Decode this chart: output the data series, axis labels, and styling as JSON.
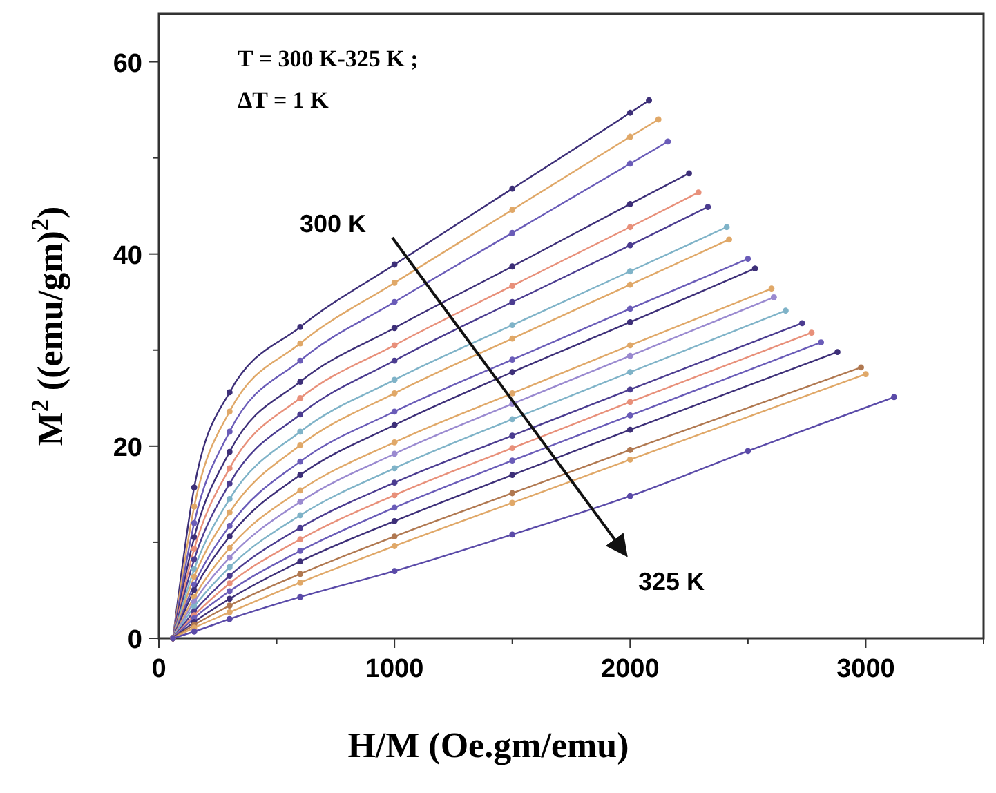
{
  "chart_data": {
    "type": "line",
    "xlabel": "H/M (Oe.gm/emu)",
    "ylabel": "M$^{2}$ ((emu/gm)$^{2}$)",
    "xlim": [
      0,
      3500
    ],
    "ylim": [
      0,
      65
    ],
    "xticks": [
      0,
      {
        "value": 500,
        "label": null
      },
      1000,
      {
        "value": 1500,
        "label": null
      },
      2000,
      {
        "value": 2500,
        "label": null
      },
      3000,
      {
        "value": 3500,
        "label": null
      }
    ],
    "yticks": [
      0,
      {
        "value": 10,
        "label": null
      },
      20,
      {
        "value": 30,
        "label": null
      },
      40,
      {
        "value": 50,
        "label": null
      },
      60
    ],
    "marker": "circle",
    "line_style": "solid",
    "annotations": [
      "T = 300 K-325 K ;",
      "ΔT = 1 K",
      "300 K",
      "325 K"
    ],
    "series": [
      {
        "color": "#3d2f78",
        "x": [
          60,
          150,
          300,
          600,
          1000,
          1500,
          2000,
          2080
        ],
        "values": [
          0,
          15.7,
          25.6,
          32.4,
          38.9,
          46.8,
          54.7,
          56
        ]
      },
      {
        "color": "#e0a868",
        "x": [
          60,
          150,
          300,
          600,
          1000,
          1500,
          2000,
          2120
        ],
        "values": [
          0,
          13.7,
          23.6,
          30.7,
          37.0,
          44.6,
          52.2,
          54.0
        ]
      },
      {
        "color": "#6a5cb8",
        "x": [
          60,
          150,
          300,
          600,
          1000,
          1500,
          2000,
          2160
        ],
        "values": [
          0,
          12.0,
          21.5,
          28.9,
          35.0,
          42.2,
          49.4,
          51.7
        ]
      },
      {
        "color": "#3d2f78",
        "x": [
          60,
          150,
          300,
          600,
          1000,
          1500,
          2000,
          2250
        ],
        "values": [
          0,
          10.5,
          19.4,
          26.7,
          32.3,
          38.7,
          45.2,
          48.4
        ]
      },
      {
        "color": "#e8907a",
        "x": [
          60,
          150,
          300,
          600,
          1000,
          1500,
          2000,
          2290
        ],
        "values": [
          0,
          9.3,
          17.7,
          25.0,
          30.5,
          36.7,
          42.8,
          46.4
        ]
      },
      {
        "color": "#4b3c90",
        "x": [
          60,
          150,
          300,
          600,
          1000,
          1500,
          2000,
          2330
        ],
        "values": [
          0,
          8.2,
          16.1,
          23.3,
          28.9,
          35.0,
          40.9,
          44.9
        ]
      },
      {
        "color": "#7fb3c8",
        "x": [
          60,
          150,
          300,
          600,
          1000,
          1500,
          2000,
          2410
        ],
        "values": [
          0,
          7.2,
          14.5,
          21.5,
          26.9,
          32.6,
          38.2,
          42.8
        ]
      },
      {
        "color": "#e0a868",
        "x": [
          60,
          150,
          300,
          600,
          1000,
          1500,
          2000,
          2420
        ],
        "values": [
          0,
          6.4,
          13.1,
          20.1,
          25.5,
          31.2,
          36.8,
          41.5
        ]
      },
      {
        "color": "#6a5cb8",
        "x": [
          60,
          150,
          300,
          600,
          1000,
          1500,
          2000,
          2500
        ],
        "values": [
          0,
          5.6,
          11.7,
          18.4,
          23.6,
          29.0,
          34.3,
          39.5
        ]
      },
      {
        "color": "#3d2f78",
        "x": [
          60,
          150,
          300,
          600,
          1000,
          1500,
          2000,
          2530
        ],
        "values": [
          0,
          5.0,
          10.6,
          17.0,
          22.2,
          27.7,
          32.9,
          38.5
        ]
      },
      {
        "color": "#e0a868",
        "x": [
          60,
          150,
          300,
          600,
          1000,
          1500,
          2000,
          2600
        ],
        "values": [
          0,
          4.3,
          9.4,
          15.4,
          20.4,
          25.5,
          30.5,
          36.4
        ]
      },
      {
        "color": "#9a8ad0",
        "x": [
          60,
          150,
          300,
          600,
          1000,
          1500,
          2000,
          2610
        ],
        "values": [
          0,
          3.8,
          8.4,
          14.2,
          19.2,
          24.4,
          29.4,
          35.5
        ]
      },
      {
        "color": "#7fb3c8",
        "x": [
          60,
          150,
          300,
          600,
          1000,
          1500,
          2000,
          2660
        ],
        "values": [
          0,
          3.3,
          7.4,
          12.8,
          17.7,
          22.8,
          27.7,
          34.1
        ]
      },
      {
        "color": "#4b3c90",
        "x": [
          60,
          150,
          300,
          600,
          1000,
          1500,
          2000,
          2730
        ],
        "values": [
          0,
          2.8,
          6.5,
          11.5,
          16.2,
          21.1,
          25.9,
          32.8
        ]
      },
      {
        "color": "#e8907a",
        "x": [
          60,
          150,
          300,
          600,
          1000,
          1500,
          2000,
          2770
        ],
        "values": [
          0,
          2.4,
          5.7,
          10.3,
          14.9,
          19.8,
          24.6,
          31.8
        ]
      },
      {
        "color": "#6a5cb8",
        "x": [
          60,
          150,
          300,
          600,
          1000,
          1500,
          2000,
          2810
        ],
        "values": [
          0,
          2.1,
          4.9,
          9.1,
          13.6,
          18.5,
          23.2,
          30.8
        ]
      },
      {
        "color": "#3d2f78",
        "x": [
          60,
          150,
          300,
          600,
          1000,
          1500,
          2000,
          2880
        ],
        "values": [
          0,
          1.7,
          4.1,
          8.0,
          12.2,
          17.0,
          21.7,
          29.8
        ]
      },
      {
        "color": "#b07850",
        "x": [
          60,
          150,
          300,
          600,
          1000,
          1500,
          2000,
          2980
        ],
        "values": [
          0,
          1.4,
          3.4,
          6.7,
          10.6,
          15.1,
          19.6,
          28.2
        ]
      },
      {
        "color": "#e0a868",
        "x": [
          60,
          150,
          300,
          600,
          1000,
          1500,
          2000,
          3000
        ],
        "values": [
          0,
          1.1,
          2.7,
          5.8,
          9.6,
          14.1,
          18.6,
          27.5
        ]
      },
      {
        "color": "#5a4aa8",
        "x": [
          60,
          150,
          300,
          600,
          1000,
          1500,
          2000,
          2500,
          3120
        ],
        "values": [
          0,
          0.7,
          2.0,
          4.3,
          7.0,
          10.8,
          14.8,
          19.5,
          25.1
        ]
      }
    ]
  }
}
